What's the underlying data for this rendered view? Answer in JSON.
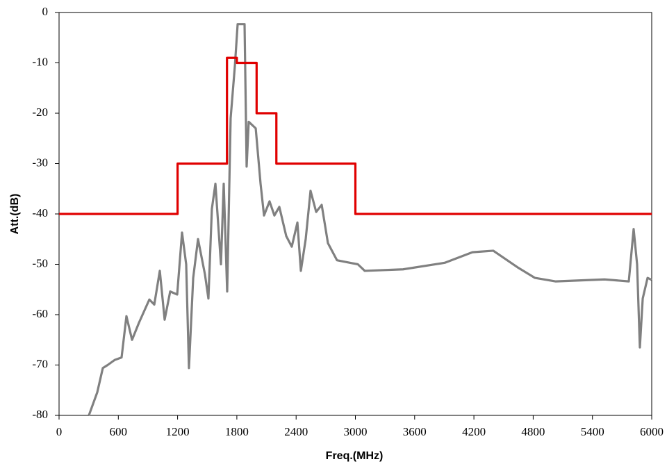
{
  "chart_data": {
    "type": "line",
    "xlabel": "Freq.(MHz)",
    "ylabel": "Att.(dB)",
    "xlim": [
      0,
      6000
    ],
    "xticks": [
      0,
      600,
      1200,
      1800,
      2400,
      3000,
      3600,
      4200,
      4800,
      5400,
      6000
    ],
    "ylim": [
      -80,
      0
    ],
    "yticks": [
      0,
      -10,
      -20,
      -30,
      -40,
      -50,
      -60,
      -70,
      -80
    ],
    "grid": false,
    "series": [
      {
        "color": "#808080",
        "x": [
          302,
          387,
          443,
          492,
          563,
          633,
          682,
          739,
          809,
          914,
          964,
          1020,
          1069,
          1125,
          1196,
          1245,
          1287,
          1315,
          1358,
          1407,
          1477,
          1512,
          1547,
          1583,
          1639,
          1667,
          1702,
          1737,
          1780,
          1808,
          1878,
          1899,
          1920,
          1991,
          2040,
          2075,
          2131,
          2180,
          2230,
          2300,
          2356,
          2413,
          2448,
          2497,
          2546,
          2603,
          2659,
          2722,
          2814,
          3025,
          3095,
          3482,
          3904,
          4185,
          4396,
          4642,
          4818,
          5029,
          5522,
          5768,
          5817,
          5852,
          5880,
          5909,
          5958,
          6000
        ],
        "values": [
          -80,
          -75.4,
          -70.6,
          -70,
          -69,
          -68.5,
          -60.3,
          -65,
          -61.6,
          -57,
          -58,
          -51.3,
          -61,
          -55.4,
          -56,
          -43.7,
          -50,
          -70.6,
          -52.7,
          -45,
          -52,
          -56.8,
          -39,
          -34,
          -50,
          -34,
          -55.4,
          -21,
          -10.6,
          -2.3,
          -2.3,
          -30.6,
          -21.7,
          -23,
          -34,
          -40.3,
          -37.5,
          -40.3,
          -38.6,
          -44.4,
          -46.5,
          -41.7,
          -51.3,
          -45,
          -35.4,
          -39.6,
          -38.2,
          -45.8,
          -49.2,
          -50,
          -51.3,
          -51,
          -49.7,
          -47.6,
          -47.3,
          -50.6,
          -52.7,
          -53.4,
          -53,
          -53.4,
          -43,
          -50,
          -66.5,
          -56.8,
          -52.7,
          -53.1
        ]
      },
      {
        "color": "#e00000",
        "x": [
          0,
          1200,
          1200,
          1700,
          1700,
          1800,
          1800,
          2000,
          2000,
          2200,
          2200,
          3000,
          3000,
          6000
        ],
        "values": [
          -40,
          -40,
          -30,
          -30,
          -9,
          -9,
          -10,
          -10,
          -20,
          -20,
          -30,
          -30,
          -40,
          -40
        ]
      }
    ]
  }
}
